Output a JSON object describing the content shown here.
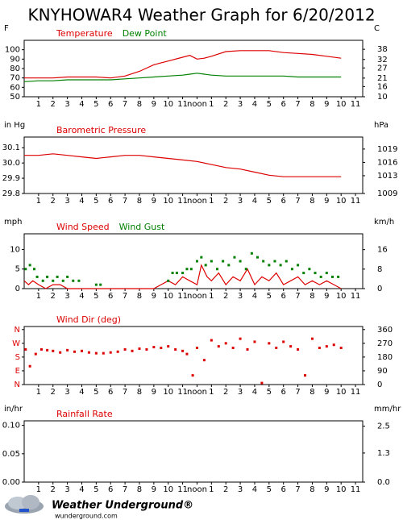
{
  "title": "KNYHOWAR4 Weather Graph for 6/20/2012",
  "footer": {
    "brand": "Weather Underground®",
    "url": "wunderground.com"
  },
  "chart_data": [
    {
      "type": "line",
      "ylabel": "F",
      "y2label": "C",
      "xlim": [
        0,
        23.5
      ],
      "xticks": [
        1,
        2,
        3,
        4,
        5,
        6,
        7,
        8,
        9,
        10,
        11,
        {
          "value": 12,
          "label": "noon"
        },
        {
          "value": 13,
          "label": "1"
        },
        {
          "value": 14,
          "label": "2"
        },
        {
          "value": 15,
          "label": "3"
        },
        {
          "value": 16,
          "label": "4"
        },
        {
          "value": 17,
          "label": "5"
        },
        {
          "value": 18,
          "label": "6"
        },
        {
          "value": 19,
          "label": "7"
        },
        {
          "value": 20,
          "label": "8"
        },
        {
          "value": 21,
          "label": "9"
        },
        {
          "value": 22,
          "label": "10"
        },
        {
          "value": 23,
          "label": "11"
        }
      ],
      "ylim": [
        50,
        110
      ],
      "yticks": [
        50,
        60,
        70,
        80,
        90,
        100
      ],
      "y2lim": [
        10,
        43.3
      ],
      "y2ticks": [
        10,
        16,
        21,
        27,
        32,
        38
      ],
      "series": [
        {
          "name": "Temperature",
          "color": "#dd0000",
          "mode": "lines",
          "x": [
            0,
            1,
            2,
            3,
            4,
            5,
            6,
            7,
            8,
            9,
            10,
            11,
            11.5,
            12,
            12.5,
            13,
            14,
            15,
            16,
            17,
            18,
            19,
            20,
            21,
            22
          ],
          "values": [
            70,
            70,
            70,
            71,
            71,
            71,
            70,
            72,
            77,
            84,
            88,
            92,
            94,
            90,
            91,
            93,
            98,
            99,
            99,
            99,
            97,
            96,
            95,
            93,
            91
          ]
        },
        {
          "name": "Dew Point",
          "color": "#008000",
          "mode": "lines",
          "x": [
            0,
            1,
            2,
            3,
            4,
            5,
            6,
            7,
            8,
            9,
            10,
            11,
            11.5,
            12,
            12.5,
            13,
            14,
            15,
            16,
            17,
            18,
            19,
            20,
            21,
            22
          ],
          "values": [
            66,
            67,
            67,
            68,
            68,
            68,
            68,
            69,
            70,
            71,
            72,
            73,
            74,
            75,
            74,
            73,
            72,
            72,
            72,
            72,
            72,
            71,
            71,
            71,
            71
          ]
        }
      ]
    },
    {
      "type": "line",
      "ylabel": "in Hg",
      "y2label": "hPa",
      "xlim": [
        0,
        23.5
      ],
      "xticks": [
        1,
        2,
        3,
        4,
        5,
        6,
        7,
        8,
        9,
        10,
        11,
        {
          "value": 12,
          "label": "noon"
        },
        {
          "value": 13,
          "label": "1"
        },
        {
          "value": 14,
          "label": "2"
        },
        {
          "value": 15,
          "label": "3"
        },
        {
          "value": 16,
          "label": "4"
        },
        {
          "value": 17,
          "label": "5"
        },
        {
          "value": 18,
          "label": "6"
        },
        {
          "value": 19,
          "label": "7"
        },
        {
          "value": 20,
          "label": "8"
        },
        {
          "value": 21,
          "label": "9"
        },
        {
          "value": 22,
          "label": "10"
        },
        {
          "value": 23,
          "label": "11"
        }
      ],
      "ylim": [
        29.8,
        30.17
      ],
      "yticks": [
        29.8,
        29.9,
        {
          "value": 30.0,
          "label": "30.0"
        },
        30.1
      ],
      "y2lim": [
        1009,
        1021.7
      ],
      "y2ticks": [
        1009,
        1013,
        1016,
        1019
      ],
      "series": [
        {
          "name": "Barometric Pressure",
          "color": "#dd0000",
          "mode": "lines",
          "x": [
            0,
            1,
            2,
            3,
            4,
            5,
            6,
            7,
            8,
            9,
            10,
            11,
            12,
            13,
            14,
            15,
            16,
            17,
            18,
            19,
            20,
            21,
            22
          ],
          "values": [
            30.05,
            30.05,
            30.06,
            30.05,
            30.04,
            30.03,
            30.04,
            30.05,
            30.05,
            30.04,
            30.03,
            30.02,
            30.01,
            29.99,
            29.97,
            29.96,
            29.94,
            29.92,
            29.91,
            29.91,
            29.91,
            29.91,
            29.91
          ]
        }
      ]
    },
    {
      "type": "line",
      "ylabel": "mph",
      "y2label": "km/h",
      "xlim": [
        0,
        23.5
      ],
      "xticks": [
        1,
        2,
        3,
        4,
        5,
        6,
        7,
        8,
        9,
        10,
        11,
        {
          "value": 12,
          "label": "noon"
        },
        {
          "value": 13,
          "label": "1"
        },
        {
          "value": 14,
          "label": "2"
        },
        {
          "value": 15,
          "label": "3"
        },
        {
          "value": 16,
          "label": "4"
        },
        {
          "value": 17,
          "label": "5"
        },
        {
          "value": 18,
          "label": "6"
        },
        {
          "value": 19,
          "label": "7"
        },
        {
          "value": 20,
          "label": "8"
        },
        {
          "value": 21,
          "label": "9"
        },
        {
          "value": 22,
          "label": "10"
        },
        {
          "value": 23,
          "label": "11"
        }
      ],
      "ylim": [
        0,
        14
      ],
      "yticks": [
        0,
        5,
        10
      ],
      "y2lim": [
        0,
        22.5
      ],
      "y2ticks": [
        0,
        8,
        16
      ],
      "series": [
        {
          "name": "Wind Speed",
          "color": "#dd0000",
          "mode": "lines",
          "x": [
            0,
            0.3,
            0.6,
            1,
            1.5,
            2,
            2.5,
            3,
            3.5,
            4,
            5,
            6,
            7,
            8,
            9,
            9.5,
            10,
            10.5,
            11,
            11.5,
            12,
            12.3,
            12.7,
            13,
            13.5,
            14,
            14.5,
            15,
            15.5,
            16,
            16.5,
            17,
            17.5,
            18,
            18.5,
            19,
            19.5,
            20,
            20.5,
            21,
            21.5,
            22
          ],
          "values": [
            2,
            1,
            2,
            1,
            0,
            1,
            1,
            0,
            0,
            0,
            0,
            0,
            0,
            0,
            0,
            1,
            2,
            1,
            3,
            2,
            1,
            6,
            3,
            2,
            4,
            1,
            3,
            2,
            5,
            1,
            3,
            2,
            4,
            1,
            2,
            3,
            1,
            2,
            1,
            2,
            1,
            0
          ]
        },
        {
          "name": "Wind Gust",
          "color": "#008000",
          "mode": "markers",
          "x": [
            0.1,
            0.4,
            0.7,
            0.9,
            1.3,
            1.6,
            2.0,
            2.3,
            2.7,
            3.0,
            3.4,
            3.8,
            5.0,
            5.3,
            10.0,
            10.3,
            10.6,
            11.0,
            11.3,
            11.6,
            12.0,
            12.3,
            12.6,
            13.0,
            13.4,
            13.8,
            14.2,
            14.6,
            15.0,
            15.4,
            15.8,
            16.2,
            16.6,
            17.0,
            17.4,
            17.8,
            18.2,
            18.6,
            19.0,
            19.4,
            19.8,
            20.2,
            20.6,
            21.0,
            21.4,
            21.8
          ],
          "values": [
            5,
            6,
            5,
            3,
            2,
            3,
            2,
            3,
            2,
            3,
            2,
            2,
            1,
            1,
            2,
            4,
            4,
            4,
            5,
            5,
            7,
            8,
            6,
            7,
            5,
            7,
            6,
            8,
            7,
            5,
            9,
            8,
            7,
            6,
            7,
            6,
            7,
            5,
            6,
            4,
            5,
            4,
            3,
            4,
            3,
            3
          ]
        }
      ]
    },
    {
      "type": "scatter",
      "ytick_color": "#dd0000",
      "xlim": [
        0,
        23.5
      ],
      "xticks": [
        1,
        2,
        3,
        4,
        5,
        6,
        7,
        8,
        9,
        10,
        11,
        {
          "value": 12,
          "label": "noon"
        },
        {
          "value": 13,
          "label": "1"
        },
        {
          "value": 14,
          "label": "2"
        },
        {
          "value": 15,
          "label": "3"
        },
        {
          "value": 16,
          "label": "4"
        },
        {
          "value": 17,
          "label": "5"
        },
        {
          "value": 18,
          "label": "6"
        },
        {
          "value": 19,
          "label": "7"
        },
        {
          "value": 20,
          "label": "8"
        },
        {
          "value": 21,
          "label": "9"
        },
        {
          "value": 22,
          "label": "10"
        },
        {
          "value": 23,
          "label": "11"
        }
      ],
      "ylim": [
        0,
        380
      ],
      "yticks": [
        {
          "value": 0,
          "label": "N"
        },
        {
          "value": 90,
          "label": "E"
        },
        {
          "value": 180,
          "label": "S"
        },
        {
          "value": 270,
          "label": "W"
        },
        {
          "value": 360,
          "label": "N"
        }
      ],
      "y2lim": [
        0,
        380
      ],
      "y2ticks": [
        0,
        90,
        180,
        270,
        360
      ],
      "series": [
        {
          "name": "Wind Dir (deg)",
          "color": "#dd0000",
          "mode": "markers",
          "x": [
            0.1,
            0.4,
            0.8,
            1.2,
            1.6,
            2,
            2.5,
            3,
            3.5,
            4,
            4.5,
            5,
            5.5,
            6,
            6.5,
            7,
            7.5,
            8,
            8.5,
            9,
            9.5,
            10,
            10.5,
            11,
            11.3,
            11.7,
            12,
            12.5,
            13,
            13.5,
            14,
            14.5,
            15,
            15.5,
            16,
            16.5,
            17,
            17.5,
            18,
            18.5,
            19,
            19.5,
            20,
            20.5,
            21,
            21.5,
            22
          ],
          "values": [
            230,
            120,
            200,
            230,
            225,
            220,
            210,
            225,
            215,
            220,
            210,
            205,
            205,
            210,
            215,
            230,
            220,
            235,
            230,
            245,
            240,
            250,
            230,
            220,
            200,
            60,
            240,
            160,
            290,
            250,
            270,
            240,
            300,
            230,
            280,
            10,
            270,
            240,
            280,
            250,
            230,
            60,
            300,
            240,
            250,
            260,
            240
          ]
        }
      ]
    },
    {
      "type": "line",
      "ylabel": "in/hr",
      "y2label": "mm/hr",
      "xlim": [
        0,
        23.5
      ],
      "xticks": [
        1,
        2,
        3,
        4,
        5,
        6,
        7,
        8,
        9,
        10,
        11,
        {
          "value": 12,
          "label": "noon"
        },
        {
          "value": 13,
          "label": "1"
        },
        {
          "value": 14,
          "label": "2"
        },
        {
          "value": 15,
          "label": "3"
        },
        {
          "value": 16,
          "label": "4"
        },
        {
          "value": 17,
          "label": "5"
        },
        {
          "value": 18,
          "label": "6"
        },
        {
          "value": 19,
          "label": "7"
        },
        {
          "value": 20,
          "label": "8"
        },
        {
          "value": 21,
          "label": "9"
        },
        {
          "value": 22,
          "label": "10"
        },
        {
          "value": 23,
          "label": "11"
        }
      ],
      "ylim": [
        0,
        0.108
      ],
      "yticks": [
        {
          "value": 0,
          "label": "0.00"
        },
        0.05,
        {
          "value": 0.1,
          "label": "0.10"
        }
      ],
      "y2lim": [
        0,
        2.74
      ],
      "y2ticks": [
        {
          "value": 0,
          "label": "0.0"
        },
        1.3,
        2.5
      ],
      "series": [
        {
          "name": "Rainfall Rate",
          "color": "#dd0000",
          "mode": "lines",
          "x": [],
          "values": []
        }
      ]
    }
  ]
}
